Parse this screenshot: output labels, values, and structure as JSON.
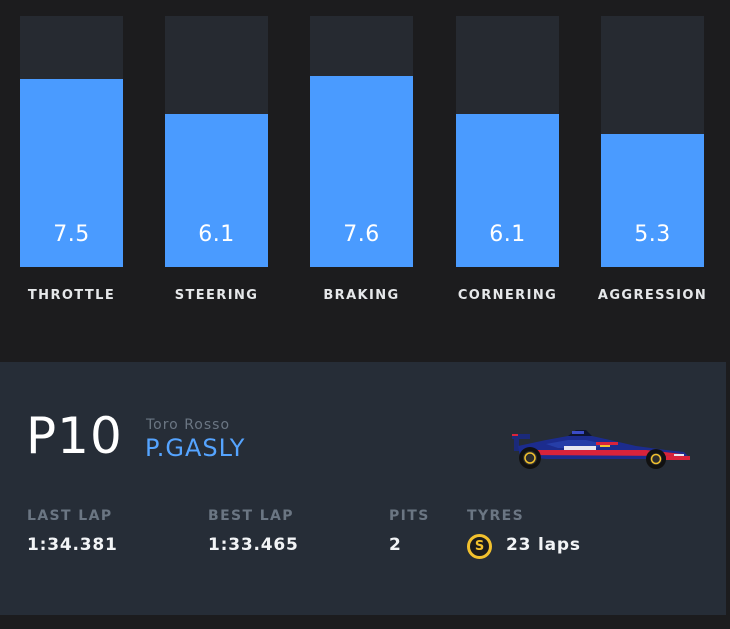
{
  "stats": [
    {
      "label": "THROTTLE",
      "value": "7.5",
      "fill": 0.75
    },
    {
      "label": "STEERING",
      "value": "6.1",
      "fill": 0.61
    },
    {
      "label": "BRAKING",
      "value": "7.6",
      "fill": 0.76
    },
    {
      "label": "CORNERING",
      "value": "6.1",
      "fill": 0.61
    },
    {
      "label": "AGGRESSION",
      "value": "5.3",
      "fill": 0.53
    }
  ],
  "driver": {
    "position": "P10",
    "team": "Toro Rosso",
    "name": "P.GASLY",
    "car_icon": "f1-car-icon"
  },
  "timing": {
    "last_lap_label": "LAST LAP",
    "last_lap": "1:34.381",
    "best_lap_label": "BEST LAP",
    "best_lap": "1:33.465",
    "pits_label": "PITS",
    "pits": "2",
    "tyres_label": "TYRES",
    "tyre_compound": "S",
    "tyre_laps": "23 laps"
  },
  "colors": {
    "bar_fill": "#4a9bff",
    "bar_track": "#262a31",
    "driver_name": "#55a4ff",
    "tyre_soft": "#f2c12e",
    "panel": "#262d37"
  }
}
